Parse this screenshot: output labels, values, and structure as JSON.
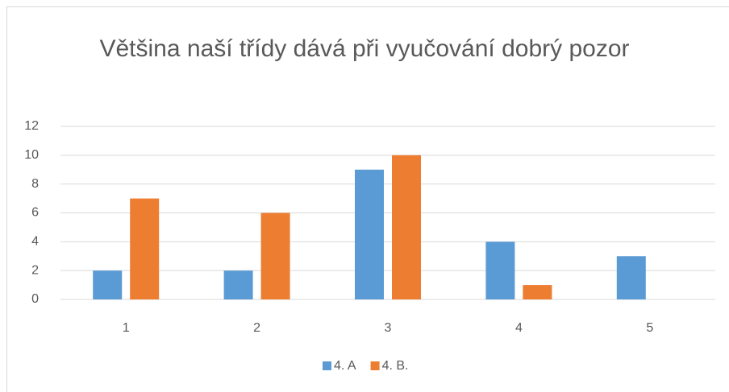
{
  "chart_data": {
    "type": "bar",
    "title": "Většina naší třídy dává při vyučování dobrý pozor",
    "categories": [
      "1",
      "2",
      "3",
      "4",
      "5"
    ],
    "series": [
      {
        "name": "4. A",
        "color": "#5b9bd5",
        "values": [
          2,
          2,
          9,
          4,
          3
        ]
      },
      {
        "name": "4. B.",
        "color": "#ed7d31",
        "values": [
          7,
          6,
          10,
          1,
          0
        ]
      }
    ],
    "ylim": [
      0,
      12
    ],
    "yticks": [
      0,
      2,
      4,
      6,
      8,
      10,
      12
    ],
    "grid": true,
    "legend": "bottom"
  }
}
